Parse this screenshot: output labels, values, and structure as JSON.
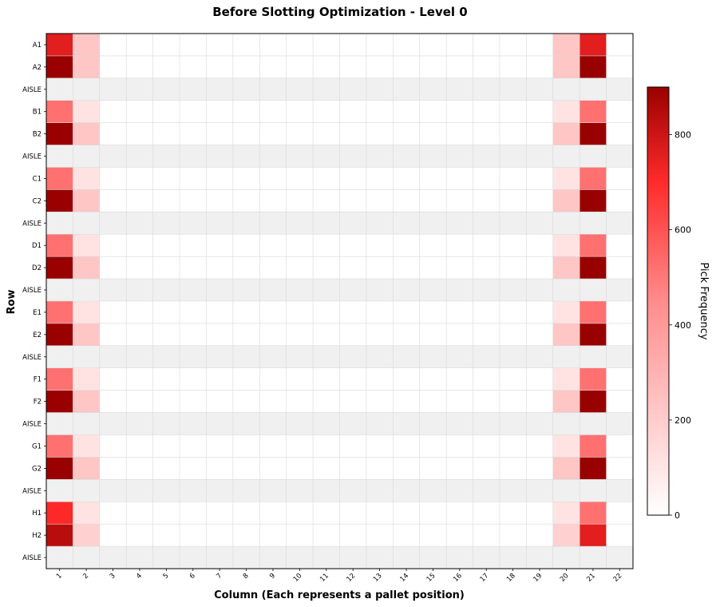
{
  "chart_data": {
    "type": "heatmap",
    "title": "Before Slotting Optimization - Level 0",
    "xlabel": "Column (Each represents a pallet position)",
    "ylabel": "Row",
    "colorbar_label": "Pick Frequency",
    "colorbar_ticks": [
      "0",
      "200",
      "400",
      "600",
      "800"
    ],
    "colorbar_range": [
      0,
      900
    ],
    "colormap": [
      "#ffffff",
      "#ff2a2a",
      "#990000"
    ],
    "aisle_color": "#f0f0f0",
    "grid": true,
    "columns": [
      "1",
      "2",
      "3",
      "4",
      "5",
      "6",
      "7",
      "8",
      "9",
      "10",
      "11",
      "12",
      "13",
      "14",
      "15",
      "16",
      "17",
      "18",
      "19",
      "20",
      "21",
      "22"
    ],
    "rows": [
      "A1",
      "A2",
      "AISLE",
      "B1",
      "B2",
      "AISLE",
      "C1",
      "C2",
      "AISLE",
      "D1",
      "D2",
      "AISLE",
      "E1",
      "E2",
      "AISLE",
      "F1",
      "F2",
      "AISLE",
      "G1",
      "G2",
      "AISLE",
      "H1",
      "H2",
      "AISLE"
    ],
    "values": [
      [
        580,
        120,
        0,
        0,
        0,
        0,
        0,
        0,
        0,
        0,
        0,
        0,
        0,
        0,
        0,
        0,
        0,
        0,
        0,
        120,
        580,
        0
      ],
      [
        900,
        120,
        0,
        0,
        0,
        0,
        0,
        0,
        0,
        0,
        0,
        0,
        0,
        0,
        0,
        0,
        0,
        0,
        0,
        120,
        900,
        0
      ],
      null,
      [
        300,
        60,
        0,
        0,
        0,
        0,
        0,
        0,
        0,
        0,
        0,
        0,
        0,
        0,
        0,
        0,
        0,
        0,
        0,
        60,
        300,
        0
      ],
      [
        900,
        120,
        0,
        0,
        0,
        0,
        0,
        0,
        0,
        0,
        0,
        0,
        0,
        0,
        0,
        0,
        0,
        0,
        0,
        120,
        900,
        0
      ],
      null,
      [
        300,
        60,
        0,
        0,
        0,
        0,
        0,
        0,
        0,
        0,
        0,
        0,
        0,
        0,
        0,
        0,
        0,
        0,
        0,
        60,
        300,
        0
      ],
      [
        900,
        120,
        0,
        0,
        0,
        0,
        0,
        0,
        0,
        0,
        0,
        0,
        0,
        0,
        0,
        0,
        0,
        0,
        0,
        120,
        900,
        0
      ],
      null,
      [
        300,
        60,
        0,
        0,
        0,
        0,
        0,
        0,
        0,
        0,
        0,
        0,
        0,
        0,
        0,
        0,
        0,
        0,
        0,
        60,
        300,
        0
      ],
      [
        900,
        120,
        0,
        0,
        0,
        0,
        0,
        0,
        0,
        0,
        0,
        0,
        0,
        0,
        0,
        0,
        0,
        0,
        0,
        120,
        900,
        0
      ],
      null,
      [
        300,
        60,
        0,
        0,
        0,
        0,
        0,
        0,
        0,
        0,
        0,
        0,
        0,
        0,
        0,
        0,
        0,
        0,
        0,
        60,
        300,
        0
      ],
      [
        900,
        120,
        0,
        0,
        0,
        0,
        0,
        0,
        0,
        0,
        0,
        0,
        0,
        0,
        0,
        0,
        0,
        0,
        0,
        120,
        900,
        0
      ],
      null,
      [
        300,
        60,
        0,
        0,
        0,
        0,
        0,
        0,
        0,
        0,
        0,
        0,
        0,
        0,
        0,
        0,
        0,
        0,
        0,
        60,
        300,
        0
      ],
      [
        900,
        120,
        0,
        0,
        0,
        0,
        0,
        0,
        0,
        0,
        0,
        0,
        0,
        0,
        0,
        0,
        0,
        0,
        0,
        120,
        900,
        0
      ],
      null,
      [
        300,
        60,
        0,
        0,
        0,
        0,
        0,
        0,
        0,
        0,
        0,
        0,
        0,
        0,
        0,
        0,
        0,
        0,
        0,
        60,
        300,
        0
      ],
      [
        900,
        120,
        0,
        0,
        0,
        0,
        0,
        0,
        0,
        0,
        0,
        0,
        0,
        0,
        0,
        0,
        0,
        0,
        0,
        120,
        900,
        0
      ],
      null,
      [
        460,
        60,
        0,
        0,
        0,
        0,
        0,
        0,
        0,
        0,
        0,
        0,
        0,
        0,
        0,
        0,
        0,
        0,
        0,
        60,
        300,
        0
      ],
      [
        760,
        100,
        0,
        0,
        0,
        0,
        0,
        0,
        0,
        0,
        0,
        0,
        0,
        0,
        0,
        0,
        0,
        0,
        0,
        100,
        580,
        0
      ],
      null
    ]
  }
}
